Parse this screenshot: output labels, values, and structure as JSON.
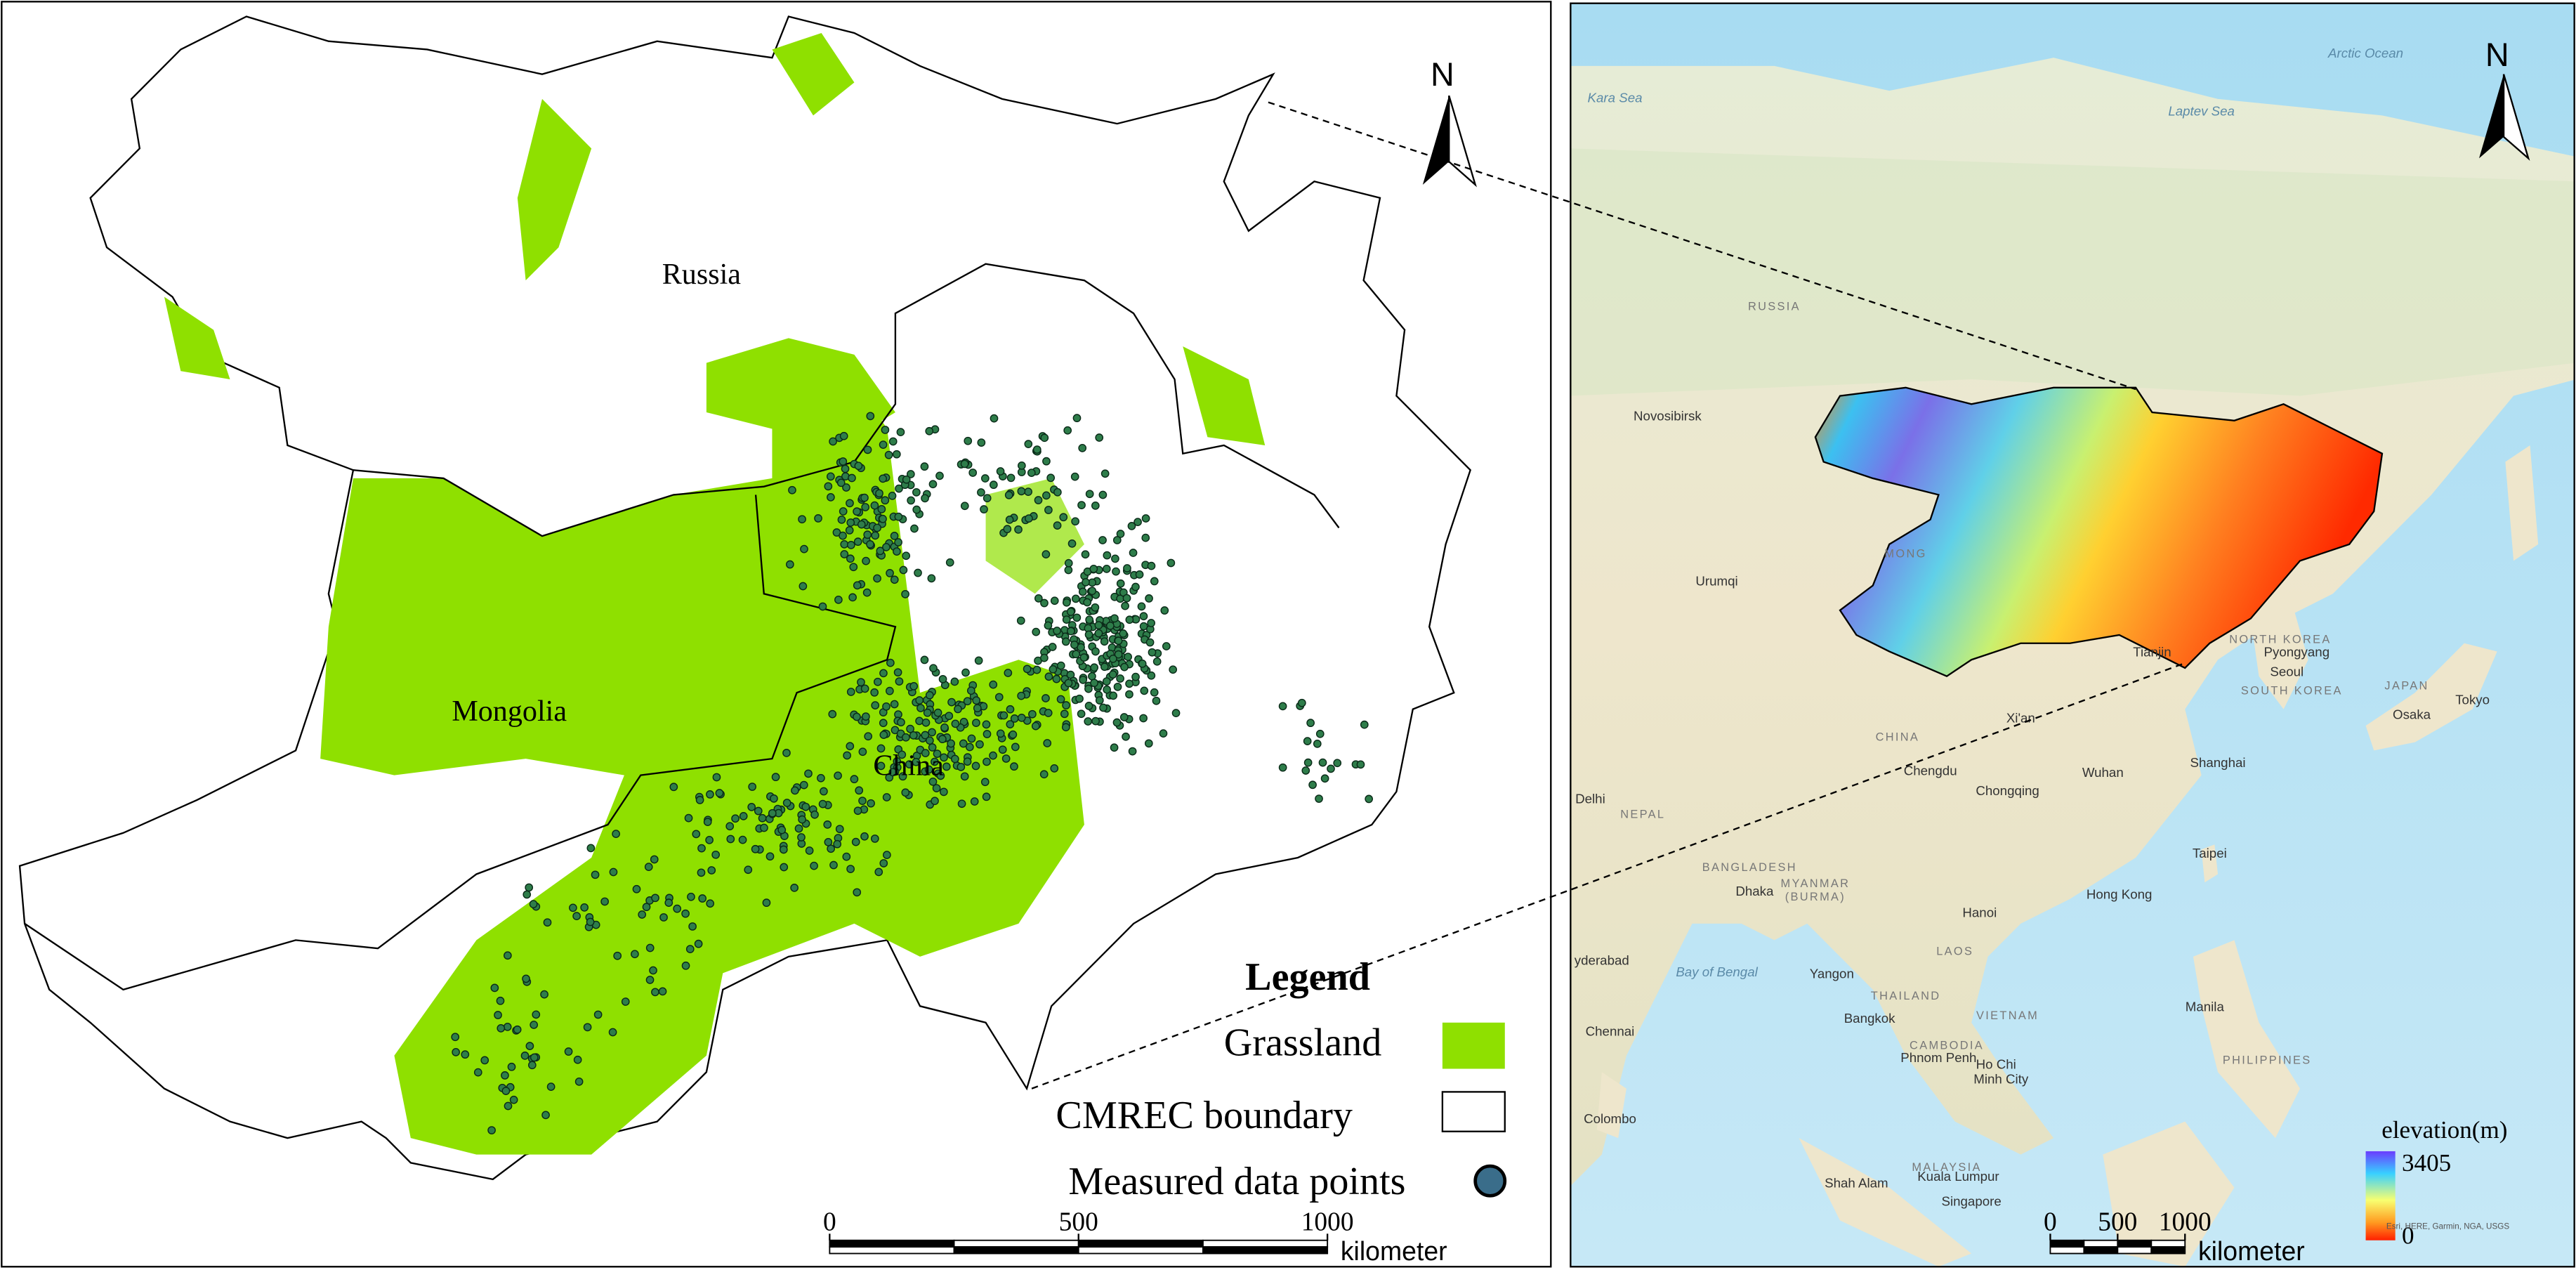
{
  "left_map": {
    "labels": [
      "Russia",
      "Mongolia",
      "China"
    ],
    "north": "N",
    "legend": {
      "title": "Legend",
      "items": [
        "Grassland",
        "CMREC boundary",
        "Measured data points"
      ]
    },
    "scale_bar": {
      "ticks": [
        0,
        500,
        1000
      ],
      "unit": "kilometer"
    }
  },
  "right_map": {
    "north": "N",
    "places": [
      "Arctic Ocean",
      "Kara Sea",
      "Laptev Sea",
      "RUSSIA",
      "Novosibirsk",
      "MONG",
      "Urumqi",
      "Tianjin",
      "NORTH KOREA",
      "Pyongyang",
      "Seoul",
      "SOUTH KOREA",
      "JAPAN",
      "Tokyo",
      "Osaka",
      "CHINA",
      "Xi'an",
      "Chengdu",
      "Wuhan",
      "Chongqing",
      "Shanghai",
      "Delhi",
      "NEPAL",
      "BANGLADESH",
      "Dhaka",
      "MYANMAR",
      "(BURMA)",
      "Taipei",
      "Hong Kong",
      "Hanoi",
      "LAOS",
      "Yangon",
      "THAILAND",
      "VIETNAM",
      "Bangkok",
      "CAMBODIA",
      "Phnom Penh",
      "Ho Chi",
      "Minh City",
      "Manila",
      "PHILIPPINES",
      "Bay of Bengal",
      "yderabad",
      "Chennai",
      "Colombo",
      "Shah Alam",
      "MALAYSIA",
      "Kuala Lumpur",
      "Singapore"
    ],
    "elevation_legend": {
      "title": "elevation(m)",
      "max": 3405,
      "min": 0
    },
    "scale_bar": {
      "ticks": [
        0,
        500,
        1000
      ],
      "unit": "kilometer"
    },
    "attribution": "Esri, HERE, Garmin, NGA, USGS"
  }
}
